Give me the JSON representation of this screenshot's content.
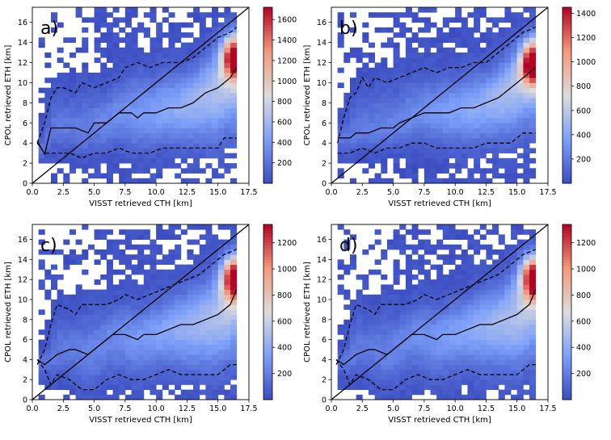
{
  "chart_data": [
    {
      "type": "heatmap",
      "panel_label": "a)",
      "xlabel": "VISST retrieved CTH [km]",
      "ylabel": "CPOL retrieved ETH [km]",
      "xlim": [
        0,
        17.5
      ],
      "ylim": [
        0,
        17.5
      ],
      "xticks": [
        "0.0",
        "2.5",
        "5.0",
        "7.5",
        "10.0",
        "12.5",
        "15.0",
        "17.5"
      ],
      "yticks": [
        "0",
        "2",
        "4",
        "6",
        "8",
        "10",
        "12",
        "14",
        "16"
      ],
      "colorbar": {
        "vmin": 0,
        "vmax": 1720,
        "ticks": [
          "200",
          "400",
          "600",
          "800",
          "1000",
          "1200",
          "1400",
          "1600"
        ]
      },
      "peak": {
        "x": 16.3,
        "y": 12.6,
        "value": 1700
      },
      "lines": {
        "median_x": [
          0.4,
          1.0,
          1.5,
          2.5,
          3.5,
          4.5,
          5.0,
          6.0,
          7.0,
          8.0,
          8.5,
          9.0,
          10.0,
          11.0,
          12.0,
          13.0,
          14.0,
          15.0,
          16.0,
          16.5
        ],
        "median_y": [
          4.2,
          2.9,
          5.5,
          5.5,
          5.5,
          5.0,
          6.0,
          6.0,
          7.0,
          7.0,
          6.5,
          7.0,
          7.0,
          7.5,
          7.5,
          8.0,
          9.0,
          9.5,
          10.5,
          11.5
        ],
        "upper_x": [
          0.4,
          1.0,
          1.5,
          2.0,
          2.5,
          3.5,
          4.0,
          5.0,
          6.0,
          7.0,
          7.5,
          8.5,
          9.5,
          10.5,
          12.0,
          13.0,
          14.0,
          15.0,
          16.0,
          16.5
        ],
        "upper_y": [
          4.0,
          6.0,
          8.5,
          9.5,
          9.5,
          9.0,
          10.0,
          9.5,
          10.0,
          10.5,
          11.5,
          12.0,
          11.5,
          12.0,
          12.0,
          12.5,
          13.5,
          14.5,
          15.0,
          15.5
        ],
        "lower_x": [
          0.4,
          1.0,
          2.0,
          3.0,
          4.0,
          5.0,
          6.0,
          7.0,
          8.0,
          9.5,
          10.5,
          11.5,
          13.0,
          15.0,
          15.5,
          16.5
        ],
        "lower_y": [
          4.0,
          3.0,
          3.0,
          3.0,
          2.5,
          3.0,
          3.0,
          3.5,
          3.0,
          3.0,
          3.5,
          3.5,
          3.5,
          3.5,
          4.5,
          4.5
        ]
      }
    },
    {
      "type": "heatmap",
      "panel_label": "b)",
      "xlabel": "VISST retrieved CTH [km]",
      "ylabel": "CPOL retrieved ETH [km]",
      "xlim": [
        0,
        17.5
      ],
      "ylim": [
        0,
        17.5
      ],
      "xticks": [
        "0.0",
        "2.5",
        "5.0",
        "7.5",
        "10.0",
        "12.5",
        "15.0",
        "17.5"
      ],
      "yticks": [
        "0",
        "2",
        "4",
        "6",
        "8",
        "10",
        "12",
        "14",
        "16"
      ],
      "colorbar": {
        "vmin": 0,
        "vmax": 1450,
        "ticks": [
          "200",
          "400",
          "600",
          "800",
          "1000",
          "1200",
          "1400"
        ]
      },
      "peak": {
        "x": 16.3,
        "y": 12.0,
        "value": 1440
      },
      "lines": {
        "median_x": [
          0.5,
          1.5,
          2.0,
          3.0,
          4.0,
          5.0,
          5.5,
          6.5,
          7.5,
          8.5,
          9.5,
          10.5,
          11.5,
          12.5,
          13.5,
          14.5,
          15.5,
          16.5
        ],
        "median_y": [
          4.5,
          4.5,
          5.0,
          5.0,
          5.5,
          5.5,
          6.0,
          6.5,
          7.0,
          7.0,
          7.0,
          7.5,
          7.5,
          8.0,
          8.5,
          9.5,
          10.5,
          11.5
        ],
        "upper_x": [
          0.5,
          1.0,
          1.5,
          2.0,
          2.5,
          3.0,
          3.5,
          4.5,
          5.5,
          6.5,
          7.5,
          8.5,
          9.5,
          10.5,
          11.5,
          12.5,
          13.5,
          14.5,
          15.5,
          16.5
        ],
        "upper_y": [
          4.0,
          6.5,
          8.5,
          9.0,
          10.5,
          9.5,
          10.5,
          10.0,
          10.5,
          11.0,
          11.5,
          11.0,
          11.5,
          11.5,
          12.0,
          12.0,
          13.0,
          14.0,
          15.0,
          15.5
        ],
        "lower_x": [
          0.5,
          1.5,
          2.5,
          3.5,
          4.5,
          5.5,
          6.5,
          7.5,
          8.5,
          9.5,
          10.5,
          11.5,
          12.5,
          13.5,
          14.5,
          15.5,
          16.5
        ],
        "lower_y": [
          3.0,
          3.0,
          3.5,
          3.0,
          3.5,
          3.5,
          4.0,
          4.0,
          3.5,
          3.5,
          3.5,
          3.5,
          4.0,
          4.0,
          4.0,
          5.0,
          5.0
        ]
      }
    },
    {
      "type": "heatmap",
      "panel_label": "c)",
      "xlabel": "VISST retrieved CTH [km]",
      "ylabel": "CPOL retrieved ETH [km]",
      "xlim": [
        0,
        17.5
      ],
      "ylim": [
        0,
        17.5
      ],
      "xticks": [
        "0.0",
        "2.5",
        "5.0",
        "7.5",
        "10.0",
        "12.5",
        "15.0",
        "17.5"
      ],
      "yticks": [
        "0",
        "2",
        "4",
        "6",
        "8",
        "10",
        "12",
        "14",
        "16"
      ],
      "colorbar": {
        "vmin": 0,
        "vmax": 1340,
        "ticks": [
          "200",
          "400",
          "600",
          "800",
          "1000",
          "1200"
        ]
      },
      "peak": {
        "x": 16.3,
        "y": 12.2,
        "value": 1320
      },
      "lines": {
        "median_x": [
          0.4,
          1.0,
          1.5,
          2.0,
          3.0,
          3.5,
          4.5,
          5.0,
          5.5,
          6.5,
          7.5,
          8.5,
          9.0,
          10.0,
          11.0,
          12.0,
          13.0,
          14.0,
          15.0,
          15.5,
          16.0,
          16.5
        ],
        "median_y": [
          4.0,
          3.5,
          4.0,
          4.5,
          5.0,
          5.0,
          4.5,
          5.0,
          5.5,
          6.5,
          6.5,
          6.0,
          6.5,
          6.5,
          7.0,
          7.5,
          7.5,
          8.0,
          8.5,
          9.0,
          9.5,
          11.0
        ],
        "upper_x": [
          0.4,
          1.0,
          1.5,
          2.0,
          3.0,
          3.5,
          4.0,
          5.0,
          6.0,
          7.0,
          7.5,
          8.5,
          9.5,
          10.5,
          11.5,
          12.5,
          13.5,
          14.5,
          15.5,
          16.5
        ],
        "upper_y": [
          3.5,
          5.0,
          7.5,
          9.5,
          9.0,
          8.5,
          9.5,
          9.5,
          9.5,
          10.0,
          10.5,
          10.0,
          10.5,
          11.0,
          11.5,
          12.0,
          12.5,
          13.5,
          14.5,
          15.0
        ],
        "lower_x": [
          0.4,
          1.0,
          1.5,
          2.0,
          3.0,
          4.0,
          5.0,
          6.0,
          7.0,
          8.0,
          9.0,
          10.0,
          11.0,
          12.0,
          13.0,
          15.0,
          16.0,
          16.5
        ],
        "lower_y": [
          4.0,
          3.0,
          1.5,
          2.5,
          2.0,
          1.0,
          1.0,
          2.0,
          2.5,
          2.0,
          2.0,
          2.5,
          3.0,
          2.5,
          2.5,
          2.5,
          3.5,
          3.5
        ]
      }
    },
    {
      "type": "heatmap",
      "panel_label": "d)",
      "xlabel": "VISST retrieved CTH [km]",
      "ylabel": "CPOL retrieved ETH [km]",
      "xlim": [
        0,
        17.5
      ],
      "ylim": [
        0,
        17.5
      ],
      "xticks": [
        "0.0",
        "2.5",
        "5.0",
        "7.5",
        "10.0",
        "12.5",
        "15.0",
        "17.5"
      ],
      "yticks": [
        "0",
        "2",
        "4",
        "6",
        "8",
        "10",
        "12",
        "14",
        "16"
      ],
      "colorbar": {
        "vmin": 0,
        "vmax": 1340,
        "ticks": [
          "200",
          "400",
          "600",
          "800",
          "1000",
          "1200"
        ]
      },
      "peak": {
        "x": 16.3,
        "y": 12.2,
        "value": 1320
      },
      "lines": {
        "median_x": [
          0.4,
          1.0,
          1.5,
          2.0,
          3.0,
          3.5,
          4.5,
          5.0,
          5.5,
          6.5,
          7.5,
          8.5,
          9.0,
          10.0,
          11.0,
          12.0,
          13.0,
          14.0,
          15.0,
          15.5,
          16.0,
          16.5
        ],
        "median_y": [
          4.0,
          3.5,
          4.0,
          4.5,
          5.0,
          5.0,
          4.5,
          5.0,
          5.5,
          6.5,
          6.5,
          6.0,
          6.5,
          6.5,
          7.0,
          7.5,
          7.5,
          8.0,
          8.5,
          9.0,
          9.5,
          11.0
        ],
        "upper_x": [
          0.4,
          1.0,
          1.5,
          2.0,
          3.0,
          3.5,
          4.0,
          5.0,
          6.0,
          7.0,
          7.5,
          8.5,
          9.5,
          10.5,
          11.5,
          12.5,
          13.5,
          14.5,
          15.5,
          16.5
        ],
        "upper_y": [
          3.5,
          5.0,
          7.5,
          9.5,
          9.0,
          8.5,
          9.5,
          9.5,
          9.5,
          10.0,
          10.5,
          10.0,
          10.5,
          11.0,
          11.5,
          12.0,
          12.5,
          13.5,
          14.5,
          15.0
        ],
        "lower_x": [
          0.4,
          1.0,
          1.5,
          2.0,
          3.0,
          4.0,
          5.0,
          6.0,
          7.0,
          8.0,
          9.0,
          10.0,
          11.0,
          12.0,
          13.0,
          15.0,
          16.0,
          16.5
        ],
        "lower_y": [
          4.0,
          3.0,
          1.5,
          2.5,
          2.0,
          1.0,
          1.0,
          2.0,
          2.5,
          2.0,
          2.0,
          2.5,
          3.0,
          2.5,
          2.5,
          2.5,
          3.5,
          3.5
        ]
      }
    }
  ]
}
